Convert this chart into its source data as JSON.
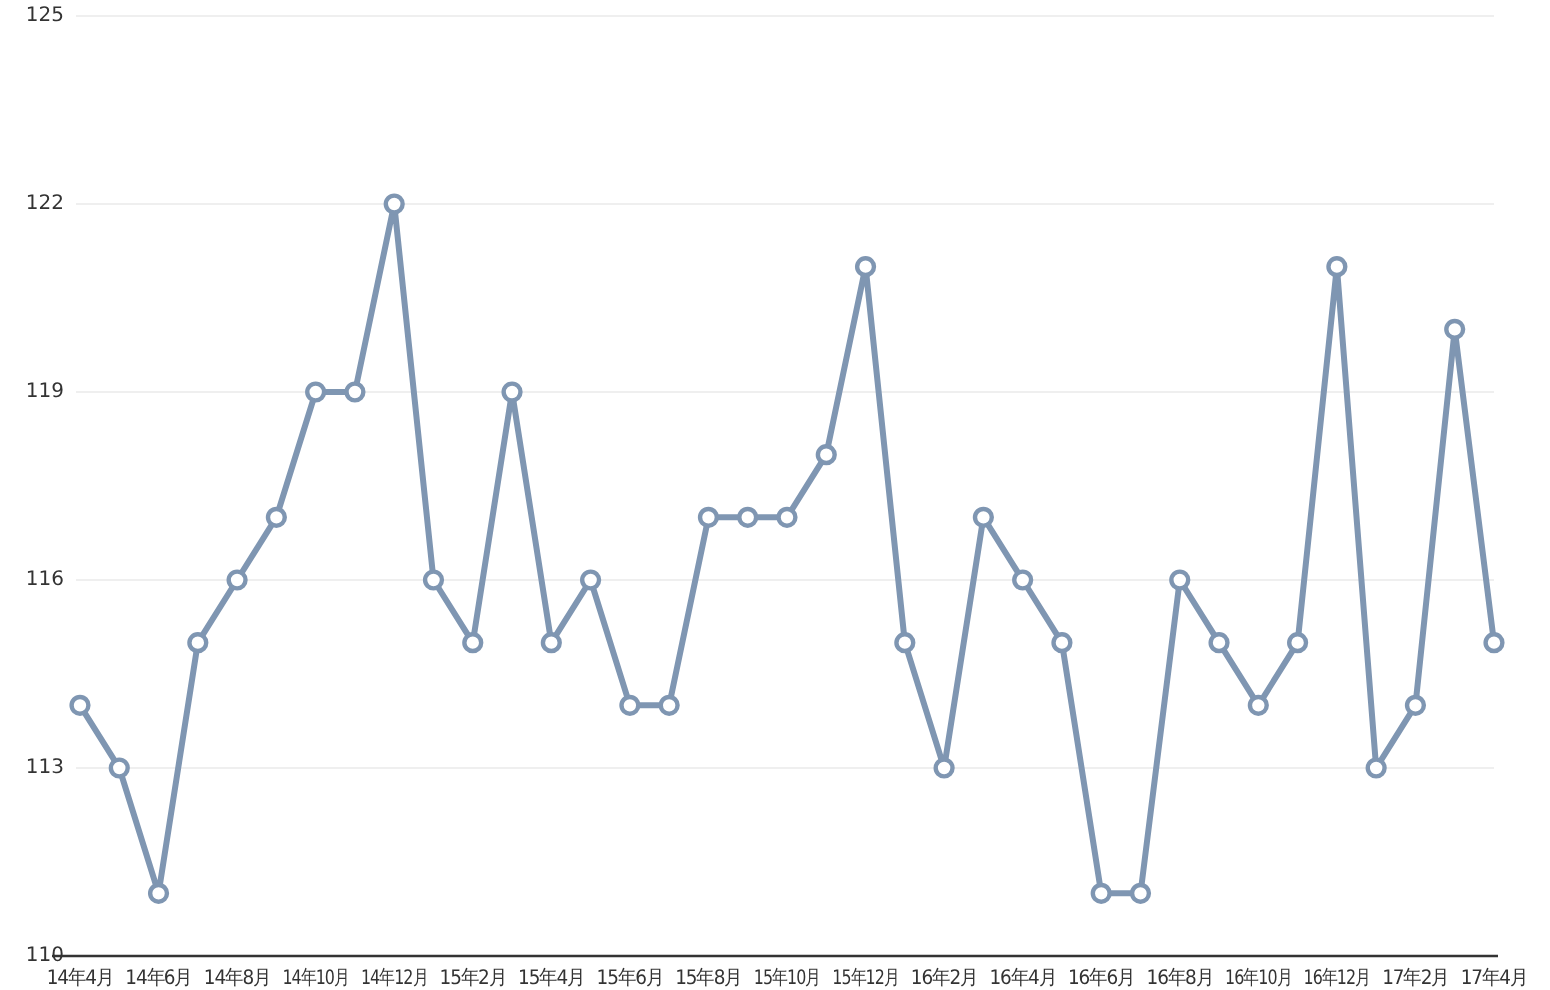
{
  "chart_data": {
    "type": "line",
    "categories": [
      "14年4月",
      null,
      "14年6月",
      null,
      "14年8月",
      null,
      "14年10月",
      null,
      "14年12月",
      null,
      "15年2月",
      null,
      "15年4月",
      null,
      "15年6月",
      null,
      "15年8月",
      null,
      "15年10月",
      null,
      "15年12月",
      null,
      "16年2月",
      null,
      "16年4月",
      null,
      "16年6月",
      null,
      "16年8月",
      null,
      "16年10月",
      null,
      "16年12月",
      null,
      "17年2月",
      null,
      "17年4月"
    ],
    "series": [
      {
        "color": "#7f96b2",
        "values": [
          114,
          113,
          111,
          115,
          116,
          117,
          119,
          119,
          122,
          116,
          115,
          119,
          115,
          116,
          114,
          114,
          117,
          117,
          117,
          118,
          121,
          115,
          113,
          117,
          116,
          115,
          111,
          111,
          116,
          115,
          114,
          115,
          121,
          113,
          114,
          120,
          115
        ]
      }
    ],
    "ylim": [
      110,
      125
    ],
    "yticks": [
      110,
      113,
      116,
      119,
      122,
      125
    ],
    "grid": "y",
    "marker": "circle",
    "line_style": "solid"
  }
}
